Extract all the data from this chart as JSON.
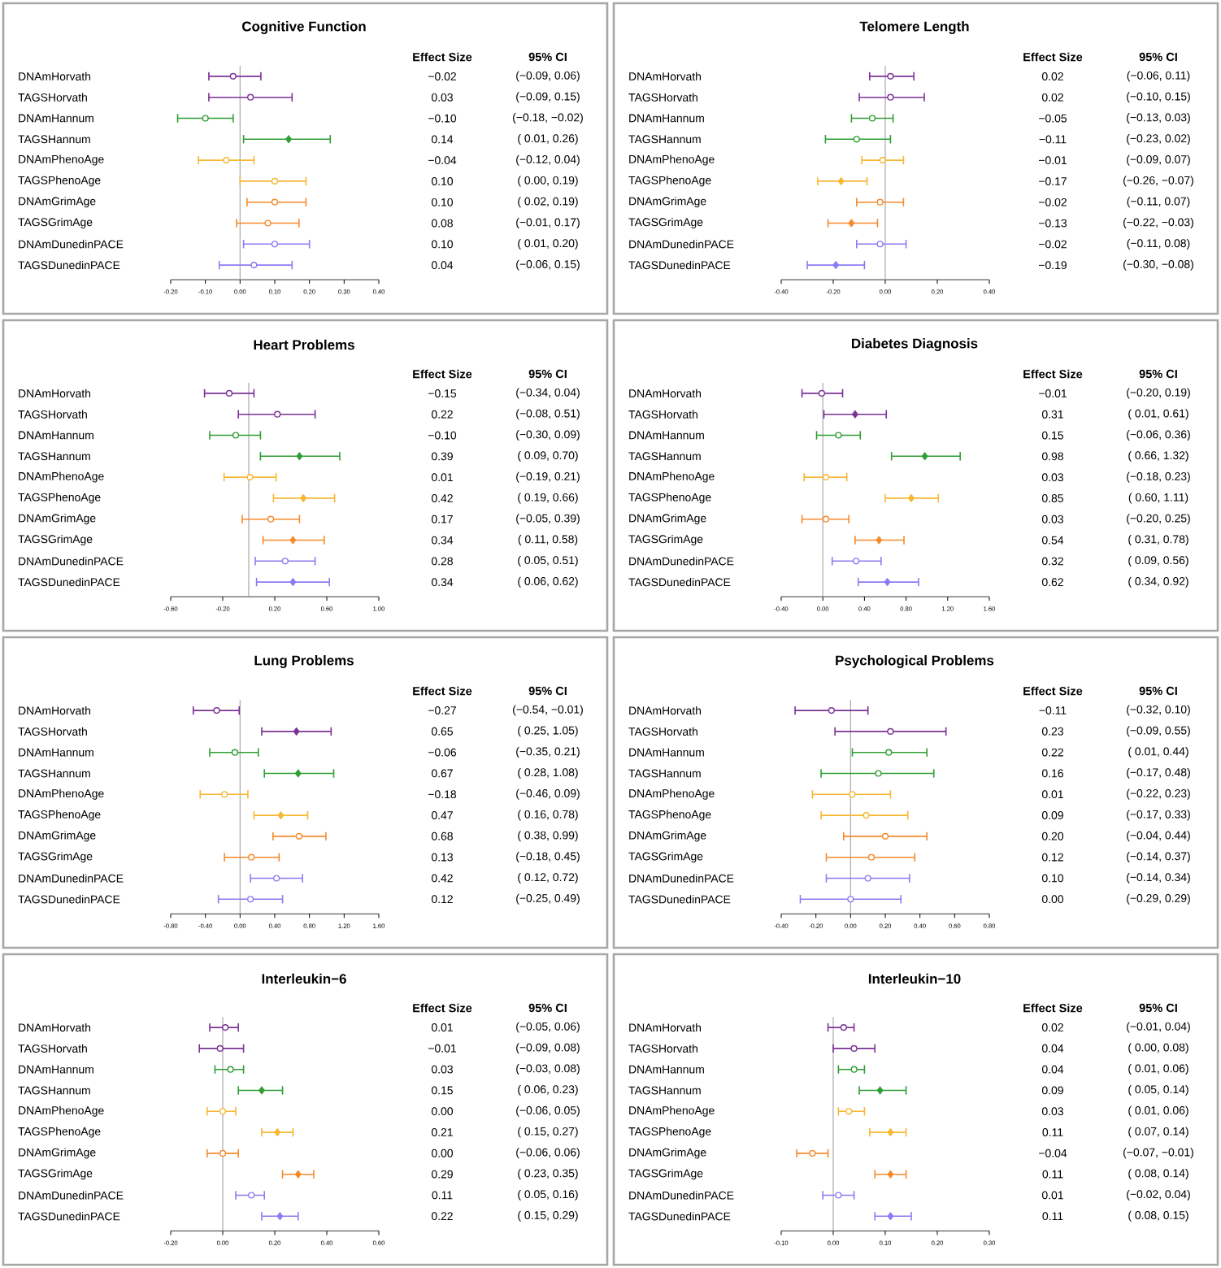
{
  "chart_data": [
    {
      "type": "scatter",
      "orientation": "horizontal",
      "title": "Cognitive Function",
      "annotations": [
        "Effect Size",
        "95% CI",
        "−0.02",
        "(−0.09, 0.06)",
        "0.03",
        "(−0.09, 0.15)",
        "−0.10",
        "(−0.18, −0.02)",
        "0.14",
        "( 0.01, 0.26)",
        "−0.04",
        "(−0.12, 0.04)",
        "0.10",
        "( 0.00, 0.19)",
        "0.10",
        "( 0.02, 0.19)",
        "0.08",
        "(−0.01, 0.17)",
        "0.10",
        "( 0.01, 0.20)",
        "0.04",
        "(−0.06, 0.15)"
      ],
      "categories": [
        "DNAmHorvath",
        "TAGSHorvath",
        "DNAmHannum",
        "TAGSHannum",
        "DNAmPhenoAge",
        "TAGSPhenoAge",
        "DNAmGrimAge",
        "TAGSGrimAge",
        "DNAmDunedinPACE",
        "TAGSDunedinPACE"
      ],
      "xlim": [
        -0.2,
        0.4
      ],
      "xticks": [
        {
          "value": -0.2,
          "label": "-0.20"
        },
        {
          "value": -0.1,
          "label": "-0.10"
        },
        {
          "value": 0,
          "label": "0.00"
        },
        {
          "value": 0.1,
          "label": "0.10"
        },
        {
          "value": 0.2,
          "label": "0.20"
        },
        {
          "value": 0.3,
          "label": "0.30"
        },
        {
          "value": 0.4,
          "label": "0.40"
        }
      ],
      "ref_lines": [
        {
          "axis": "x",
          "value": 0,
          "color": "#aaaaaa"
        }
      ],
      "series": [
        {
          "marker": "circle",
          "colors": [
            "#7b3294",
            "#7b3294",
            "#2e9e33",
            "#2e9e33",
            "#f7b733",
            "#f7b733",
            "#f68a2b",
            "#f68a2b",
            "#8a7cf5",
            "#8a7cf5"
          ],
          "values": [
            -0.02,
            0.03,
            -0.1,
            null,
            -0.04,
            0.1,
            0.1,
            0.08,
            0.1,
            0.04
          ],
          "errors": [
            [
              -0.09,
              0.06
            ],
            [
              -0.09,
              0.15
            ],
            [
              -0.18,
              -0.02
            ],
            null,
            [
              -0.12,
              0.04
            ],
            [
              0.0,
              0.19
            ],
            [
              0.02,
              0.19
            ],
            [
              -0.01,
              0.17
            ],
            [
              0.01,
              0.2
            ],
            [
              -0.06,
              0.15
            ]
          ]
        },
        {
          "marker": "diamond",
          "colors": [
            "#7b3294",
            "#7b3294",
            "#2e9e33",
            "#2e9e33",
            "#f7b733",
            "#f7b733",
            "#f68a2b",
            "#f68a2b",
            "#8a7cf5",
            "#8a7cf5"
          ],
          "values": [
            null,
            null,
            null,
            0.14,
            null,
            null,
            null,
            null,
            null,
            null
          ],
          "errors": [
            null,
            null,
            null,
            [
              0.01,
              0.26
            ],
            null,
            null,
            null,
            null,
            null,
            null
          ]
        }
      ]
    },
    {
      "type": "scatter",
      "orientation": "horizontal",
      "title": "Telomere Length",
      "annotations": [
        "Effect Size",
        "95% CI",
        "0.02",
        "(−0.06, 0.11)",
        "0.02",
        "(−0.10, 0.15)",
        "−0.05",
        "(−0.13, 0.03)",
        "−0.11",
        "(−0.23, 0.02)",
        "−0.01",
        "(−0.09, 0.07)",
        "−0.17",
        "(−0.26, −0.07)",
        "−0.02",
        "(−0.11, 0.07)",
        "−0.13",
        "(−0.22, −0.03)",
        "−0.02",
        "(−0.11, 0.08)",
        "−0.19",
        "(−0.30, −0.08)"
      ],
      "categories": [
        "DNAmHorvath",
        "TAGSHorvath",
        "DNAmHannum",
        "TAGSHannum",
        "DNAmPhenoAge",
        "TAGSPhenoAge",
        "DNAmGrimAge",
        "TAGSGrimAge",
        "DNAmDunedinPACE",
        "TAGSDunedinPACE"
      ],
      "xlim": [
        -0.4,
        0.4
      ],
      "xticks": [
        {
          "value": -0.4,
          "label": "-0.40"
        },
        {
          "value": -0.2,
          "label": "-0.20"
        },
        {
          "value": 0,
          "label": "0.00"
        },
        {
          "value": 0.2,
          "label": "0.20"
        },
        {
          "value": 0.4,
          "label": "0.40"
        }
      ],
      "ref_lines": [
        {
          "axis": "x",
          "value": 0,
          "color": "#aaaaaa"
        }
      ],
      "series": [
        {
          "marker": "circle",
          "colors": [
            "#7b3294",
            "#7b3294",
            "#2e9e33",
            "#2e9e33",
            "#f7b733",
            "#f7b733",
            "#f68a2b",
            "#f68a2b",
            "#8a7cf5",
            "#8a7cf5"
          ],
          "values": [
            0.02,
            0.02,
            -0.05,
            -0.11,
            -0.01,
            null,
            -0.02,
            null,
            -0.02,
            null
          ],
          "errors": [
            [
              -0.06,
              0.11
            ],
            [
              -0.1,
              0.15
            ],
            [
              -0.13,
              0.03
            ],
            [
              -0.23,
              0.02
            ],
            [
              -0.09,
              0.07
            ],
            null,
            [
              -0.11,
              0.07
            ],
            null,
            [
              -0.11,
              0.08
            ],
            null
          ]
        },
        {
          "marker": "diamond",
          "colors": [
            "#7b3294",
            "#7b3294",
            "#2e9e33",
            "#2e9e33",
            "#f7b733",
            "#f7b733",
            "#f68a2b",
            "#f68a2b",
            "#8a7cf5",
            "#8a7cf5"
          ],
          "values": [
            null,
            null,
            null,
            null,
            null,
            -0.17,
            null,
            -0.13,
            null,
            -0.19
          ],
          "errors": [
            null,
            null,
            null,
            null,
            null,
            [
              -0.26,
              -0.07
            ],
            null,
            [
              -0.22,
              -0.03
            ],
            null,
            [
              -0.3,
              -0.08
            ]
          ]
        }
      ]
    },
    {
      "type": "scatter",
      "orientation": "horizontal",
      "title": "Heart Problems",
      "annotations": [
        "Effect Size",
        "95% CI",
        "−0.15",
        "(−0.34, 0.04)",
        "0.22",
        "(−0.08, 0.51)",
        "−0.10",
        "(−0.30, 0.09)",
        "0.39",
        "( 0.09, 0.70)",
        "0.01",
        "(−0.19, 0.21)",
        "0.42",
        "( 0.19, 0.66)",
        "0.17",
        "(−0.05, 0.39)",
        "0.34",
        "( 0.11, 0.58)",
        "0.28",
        "( 0.05, 0.51)",
        "0.34",
        "( 0.06, 0.62)"
      ],
      "categories": [
        "DNAmHorvath",
        "TAGSHorvath",
        "DNAmHannum",
        "TAGSHannum",
        "DNAmPhenoAge",
        "TAGSPhenoAge",
        "DNAmGrimAge",
        "TAGSGrimAge",
        "DNAmDunedinPACE",
        "TAGSDunedinPACE"
      ],
      "xlim": [
        -0.6,
        1.0
      ],
      "xticks": [
        {
          "value": -0.6,
          "label": "-0.60"
        },
        {
          "value": -0.2,
          "label": "-0.20"
        },
        {
          "value": 0.2,
          "label": "0.20"
        },
        {
          "value": 0.6,
          "label": "0.60"
        },
        {
          "value": 1.0,
          "label": "1.00"
        }
      ],
      "ref_lines": [
        {
          "axis": "x",
          "value": 0,
          "color": "#aaaaaa"
        }
      ],
      "series": [
        {
          "marker": "circle",
          "colors": [
            "#7b3294",
            "#7b3294",
            "#2e9e33",
            "#2e9e33",
            "#f7b733",
            "#f7b733",
            "#f68a2b",
            "#f68a2b",
            "#8a7cf5",
            "#8a7cf5"
          ],
          "values": [
            -0.15,
            0.22,
            -0.1,
            null,
            0.01,
            null,
            0.17,
            null,
            0.28,
            null
          ],
          "errors": [
            [
              -0.34,
              0.04
            ],
            [
              -0.08,
              0.51
            ],
            [
              -0.3,
              0.09
            ],
            null,
            [
              -0.19,
              0.21
            ],
            null,
            [
              -0.05,
              0.39
            ],
            null,
            [
              0.05,
              0.51
            ],
            null
          ]
        },
        {
          "marker": "diamond",
          "colors": [
            "#7b3294",
            "#7b3294",
            "#2e9e33",
            "#2e9e33",
            "#f7b733",
            "#f7b733",
            "#f68a2b",
            "#f68a2b",
            "#8a7cf5",
            "#8a7cf5"
          ],
          "values": [
            null,
            null,
            null,
            0.39,
            null,
            0.42,
            null,
            0.34,
            null,
            0.34
          ],
          "errors": [
            null,
            null,
            null,
            [
              0.09,
              0.7
            ],
            null,
            [
              0.19,
              0.66
            ],
            null,
            [
              0.11,
              0.58
            ],
            null,
            [
              0.06,
              0.62
            ]
          ]
        }
      ]
    },
    {
      "type": "scatter",
      "orientation": "horizontal",
      "title": "Diabetes Diagnosis",
      "annotations": [
        "Effect Size",
        "95% CI",
        "−0.01",
        "(−0.20, 0.19)",
        "0.31",
        "( 0.01, 0.61)",
        "0.15",
        "(−0.06, 0.36)",
        "0.98",
        "( 0.66, 1.32)",
        "0.03",
        "(−0.18, 0.23)",
        "0.85",
        "( 0.60, 1.11)",
        "0.03",
        "(−0.20, 0.25)",
        "0.54",
        "( 0.31, 0.78)",
        "0.32",
        "( 0.09, 0.56)",
        "0.62",
        "( 0.34, 0.92)"
      ],
      "categories": [
        "DNAmHorvath",
        "TAGSHorvath",
        "DNAmHannum",
        "TAGSHannum",
        "DNAmPhenoAge",
        "TAGSPhenoAge",
        "DNAmGrimAge",
        "TAGSGrimAge",
        "DNAmDunedinPACE",
        "TAGSDunedinPACE"
      ],
      "xlim": [
        -0.4,
        1.6
      ],
      "xticks": [
        {
          "value": -0.4,
          "label": "-0.40"
        },
        {
          "value": 0,
          "label": "0.00"
        },
        {
          "value": 0.4,
          "label": "0.40"
        },
        {
          "value": 0.8,
          "label": "0.80"
        },
        {
          "value": 1.2,
          "label": "1.20"
        },
        {
          "value": 1.6,
          "label": "1.60"
        }
      ],
      "ref_lines": [
        {
          "axis": "x",
          "value": 0,
          "color": "#aaaaaa"
        }
      ],
      "series": [
        {
          "marker": "circle",
          "colors": [
            "#7b3294",
            "#7b3294",
            "#2e9e33",
            "#2e9e33",
            "#f7b733",
            "#f7b733",
            "#f68a2b",
            "#f68a2b",
            "#8a7cf5",
            "#8a7cf5"
          ],
          "values": [
            -0.01,
            null,
            0.15,
            null,
            0.03,
            null,
            0.03,
            null,
            0.32,
            null
          ],
          "errors": [
            [
              -0.2,
              0.19
            ],
            null,
            [
              -0.06,
              0.36
            ],
            null,
            [
              -0.18,
              0.23
            ],
            null,
            [
              -0.2,
              0.25
            ],
            null,
            [
              0.09,
              0.56
            ],
            null
          ]
        },
        {
          "marker": "diamond",
          "colors": [
            "#7b3294",
            "#7b3294",
            "#2e9e33",
            "#2e9e33",
            "#f7b733",
            "#f7b733",
            "#f68a2b",
            "#f68a2b",
            "#8a7cf5",
            "#8a7cf5"
          ],
          "values": [
            null,
            0.31,
            null,
            0.98,
            null,
            0.85,
            null,
            0.54,
            null,
            0.62
          ],
          "errors": [
            null,
            [
              0.01,
              0.61
            ],
            null,
            [
              0.66,
              1.32
            ],
            null,
            [
              0.6,
              1.11
            ],
            null,
            [
              0.31,
              0.78
            ],
            null,
            [
              0.34,
              0.92
            ]
          ]
        }
      ]
    },
    {
      "type": "scatter",
      "orientation": "horizontal",
      "title": "Lung Problems",
      "annotations": [
        "Effect Size",
        "95% CI",
        "−0.27",
        "(−0.54, −0.01)",
        "0.65",
        "( 0.25, 1.05)",
        "−0.06",
        "(−0.35, 0.21)",
        "0.67",
        "( 0.28, 1.08)",
        "−0.18",
        "(−0.46, 0.09)",
        "0.47",
        "( 0.16, 0.78)",
        "0.68",
        "( 0.38, 0.99)",
        "0.13",
        "(−0.18, 0.45)",
        "0.42",
        "( 0.12, 0.72)",
        "0.12",
        "(−0.25, 0.49)"
      ],
      "categories": [
        "DNAmHorvath",
        "TAGSHorvath",
        "DNAmHannum",
        "TAGSHannum",
        "DNAmPhenoAge",
        "TAGSPhenoAge",
        "DNAmGrimAge",
        "TAGSGrimAge",
        "DNAmDunedinPACE",
        "TAGSDunedinPACE"
      ],
      "xlim": [
        -0.8,
        1.6
      ],
      "xticks": [
        {
          "value": -0.8,
          "label": "-0.80"
        },
        {
          "value": -0.4,
          "label": "-0.40"
        },
        {
          "value": 0,
          "label": "0.00"
        },
        {
          "value": 0.4,
          "label": "0.40"
        },
        {
          "value": 0.8,
          "label": "0.80"
        },
        {
          "value": 1.2,
          "label": "1.20"
        },
        {
          "value": 1.6,
          "label": "1.60"
        }
      ],
      "ref_lines": [
        {
          "axis": "x",
          "value": 0,
          "color": "#aaaaaa"
        }
      ],
      "series": [
        {
          "marker": "circle",
          "colors": [
            "#7b3294",
            "#7b3294",
            "#2e9e33",
            "#2e9e33",
            "#f7b733",
            "#f7b733",
            "#f68a2b",
            "#f68a2b",
            "#8a7cf5",
            "#8a7cf5"
          ],
          "values": [
            -0.27,
            null,
            -0.06,
            null,
            -0.18,
            null,
            0.68,
            0.13,
            0.42,
            0.12
          ],
          "errors": [
            [
              -0.54,
              -0.01
            ],
            null,
            [
              -0.35,
              0.21
            ],
            null,
            [
              -0.46,
              0.09
            ],
            null,
            [
              0.38,
              0.99
            ],
            [
              -0.18,
              0.45
            ],
            [
              0.12,
              0.72
            ],
            [
              -0.25,
              0.49
            ]
          ]
        },
        {
          "marker": "diamond",
          "colors": [
            "#7b3294",
            "#7b3294",
            "#2e9e33",
            "#2e9e33",
            "#f7b733",
            "#f7b733",
            "#f68a2b",
            "#f68a2b",
            "#8a7cf5",
            "#8a7cf5"
          ],
          "values": [
            null,
            0.65,
            null,
            0.67,
            null,
            0.47,
            null,
            null,
            null,
            null
          ],
          "errors": [
            null,
            [
              0.25,
              1.05
            ],
            null,
            [
              0.28,
              1.08
            ],
            null,
            [
              0.16,
              0.78
            ],
            null,
            null,
            null,
            null
          ]
        }
      ]
    },
    {
      "type": "scatter",
      "orientation": "horizontal",
      "title": "Psychological Problems",
      "annotations": [
        "Effect Size",
        "95% CI",
        "−0.11",
        "(−0.32, 0.10)",
        "0.23",
        "(−0.09, 0.55)",
        "0.22",
        "( 0.01, 0.44)",
        "0.16",
        "(−0.17, 0.48)",
        "0.01",
        "(−0.22, 0.23)",
        "0.09",
        "(−0.17, 0.33)",
        "0.20",
        "(−0.04, 0.44)",
        "0.12",
        "(−0.14, 0.37)",
        "0.10",
        "(−0.14, 0.34)",
        "0.00",
        "(−0.29, 0.29)"
      ],
      "categories": [
        "DNAmHorvath",
        "TAGSHorvath",
        "DNAmHannum",
        "TAGSHannum",
        "DNAmPhenoAge",
        "TAGSPhenoAge",
        "DNAmGrimAge",
        "TAGSGrimAge",
        "DNAmDunedinPACE",
        "TAGSDunedinPACE"
      ],
      "xlim": [
        -0.4,
        0.8
      ],
      "xticks": [
        {
          "value": -0.4,
          "label": "-0.40"
        },
        {
          "value": -0.2,
          "label": "-0.20"
        },
        {
          "value": 0,
          "label": "0.00"
        },
        {
          "value": 0.2,
          "label": "0.20"
        },
        {
          "value": 0.4,
          "label": "0.40"
        },
        {
          "value": 0.6,
          "label": "0.60"
        },
        {
          "value": 0.8,
          "label": "0.80"
        }
      ],
      "ref_lines": [
        {
          "axis": "x",
          "value": 0,
          "color": "#aaaaaa"
        }
      ],
      "series": [
        {
          "marker": "circle",
          "colors": [
            "#7b3294",
            "#7b3294",
            "#2e9e33",
            "#2e9e33",
            "#f7b733",
            "#f7b733",
            "#f68a2b",
            "#f68a2b",
            "#8a7cf5",
            "#8a7cf5"
          ],
          "values": [
            -0.11,
            0.23,
            0.22,
            0.16,
            0.01,
            0.09,
            0.2,
            0.12,
            0.1,
            0.0
          ],
          "errors": [
            [
              -0.32,
              0.1
            ],
            [
              -0.09,
              0.55
            ],
            [
              0.01,
              0.44
            ],
            [
              -0.17,
              0.48
            ],
            [
              -0.22,
              0.23
            ],
            [
              -0.17,
              0.33
            ],
            [
              -0.04,
              0.44
            ],
            [
              -0.14,
              0.37
            ],
            [
              -0.14,
              0.34
            ],
            [
              -0.29,
              0.29
            ]
          ]
        }
      ]
    },
    {
      "type": "scatter",
      "orientation": "horizontal",
      "title": "Interleukin−6",
      "annotations": [
        "Effect Size",
        "95% CI",
        "0.01",
        "(−0.05, 0.06)",
        "−0.01",
        "(−0.09, 0.08)",
        "0.03",
        "(−0.03, 0.08)",
        "0.15",
        "( 0.06, 0.23)",
        "0.00",
        "(−0.06, 0.05)",
        "0.21",
        "( 0.15, 0.27)",
        "0.00",
        "(−0.06, 0.06)",
        "0.29",
        "( 0.23, 0.35)",
        "0.11",
        "( 0.05, 0.16)",
        "0.22",
        "( 0.15, 0.29)"
      ],
      "categories": [
        "DNAmHorvath",
        "TAGSHorvath",
        "DNAmHannum",
        "TAGSHannum",
        "DNAmPhenoAge",
        "TAGSPhenoAge",
        "DNAmGrimAge",
        "TAGSGrimAge",
        "DNAmDunedinPACE",
        "TAGSDunedinPACE"
      ],
      "xlim": [
        -0.2,
        0.6
      ],
      "xticks": [
        {
          "value": -0.2,
          "label": "-0.20"
        },
        {
          "value": 0,
          "label": "0.00"
        },
        {
          "value": 0.2,
          "label": "0.20"
        },
        {
          "value": 0.4,
          "label": "0.40"
        },
        {
          "value": 0.6,
          "label": "0.60"
        }
      ],
      "ref_lines": [
        {
          "axis": "x",
          "value": 0,
          "color": "#aaaaaa"
        }
      ],
      "series": [
        {
          "marker": "circle",
          "colors": [
            "#7b3294",
            "#7b3294",
            "#2e9e33",
            "#2e9e33",
            "#f7b733",
            "#f7b733",
            "#f68a2b",
            "#f68a2b",
            "#8a7cf5",
            "#8a7cf5"
          ],
          "values": [
            0.01,
            -0.01,
            0.03,
            null,
            0.0,
            null,
            0.0,
            null,
            0.11,
            null
          ],
          "errors": [
            [
              -0.05,
              0.06
            ],
            [
              -0.09,
              0.08
            ],
            [
              -0.03,
              0.08
            ],
            null,
            [
              -0.06,
              0.05
            ],
            null,
            [
              -0.06,
              0.06
            ],
            null,
            [
              0.05,
              0.16
            ],
            null
          ]
        },
        {
          "marker": "diamond",
          "colors": [
            "#7b3294",
            "#7b3294",
            "#2e9e33",
            "#2e9e33",
            "#f7b733",
            "#f7b733",
            "#f68a2b",
            "#f68a2b",
            "#8a7cf5",
            "#8a7cf5"
          ],
          "values": [
            null,
            null,
            null,
            0.15,
            null,
            0.21,
            null,
            0.29,
            null,
            0.22
          ],
          "errors": [
            null,
            null,
            null,
            [
              0.06,
              0.23
            ],
            null,
            [
              0.15,
              0.27
            ],
            null,
            [
              0.23,
              0.35
            ],
            null,
            [
              0.15,
              0.29
            ]
          ]
        }
      ]
    },
    {
      "type": "scatter",
      "orientation": "horizontal",
      "title": "Interleukin−10",
      "annotations": [
        "Effect Size",
        "95% CI",
        "0.02",
        "(−0.01, 0.04)",
        "0.04",
        "( 0.00, 0.08)",
        "0.04",
        "( 0.01, 0.06)",
        "0.09",
        "( 0.05, 0.14)",
        "0.03",
        "( 0.01, 0.06)",
        "0.11",
        "( 0.07, 0.14)",
        "−0.04",
        "(−0.07, −0.01)",
        "0.11",
        "( 0.08, 0.14)",
        "0.01",
        "(−0.02, 0.04)",
        "0.11",
        "( 0.08, 0.15)"
      ],
      "categories": [
        "DNAmHorvath",
        "TAGSHorvath",
        "DNAmHannum",
        "TAGSHannum",
        "DNAmPhenoAge",
        "TAGSPhenoAge",
        "DNAmGrimAge",
        "TAGSGrimAge",
        "DNAmDunedinPACE",
        "TAGSDunedinPACE"
      ],
      "xlim": [
        -0.1,
        0.3
      ],
      "xticks": [
        {
          "value": -0.1,
          "label": "-0.10"
        },
        {
          "value": 0,
          "label": "0.00"
        },
        {
          "value": 0.1,
          "label": "0.10"
        },
        {
          "value": 0.2,
          "label": "0.20"
        },
        {
          "value": 0.3,
          "label": "0.30"
        }
      ],
      "ref_lines": [
        {
          "axis": "x",
          "value": 0,
          "color": "#aaaaaa"
        }
      ],
      "series": [
        {
          "marker": "circle",
          "colors": [
            "#7b3294",
            "#7b3294",
            "#2e9e33",
            "#2e9e33",
            "#f7b733",
            "#f7b733",
            "#f68a2b",
            "#f68a2b",
            "#8a7cf5",
            "#8a7cf5"
          ],
          "values": [
            0.02,
            0.04,
            0.04,
            null,
            0.03,
            null,
            -0.04,
            null,
            0.01,
            null
          ],
          "errors": [
            [
              -0.01,
              0.04
            ],
            [
              0.0,
              0.08
            ],
            [
              0.01,
              0.06
            ],
            null,
            [
              0.01,
              0.06
            ],
            null,
            [
              -0.07,
              -0.01
            ],
            null,
            [
              -0.02,
              0.04
            ],
            null
          ]
        },
        {
          "marker": "diamond",
          "colors": [
            "#7b3294",
            "#7b3294",
            "#2e9e33",
            "#2e9e33",
            "#f7b733",
            "#f7b733",
            "#f68a2b",
            "#f68a2b",
            "#8a7cf5",
            "#8a7cf5"
          ],
          "values": [
            null,
            null,
            null,
            0.09,
            null,
            0.11,
            null,
            0.11,
            null,
            0.11
          ],
          "errors": [
            null,
            null,
            null,
            [
              0.05,
              0.14
            ],
            null,
            [
              0.07,
              0.14
            ],
            null,
            [
              0.08,
              0.14
            ],
            null,
            [
              0.08,
              0.15
            ]
          ]
        }
      ]
    }
  ]
}
